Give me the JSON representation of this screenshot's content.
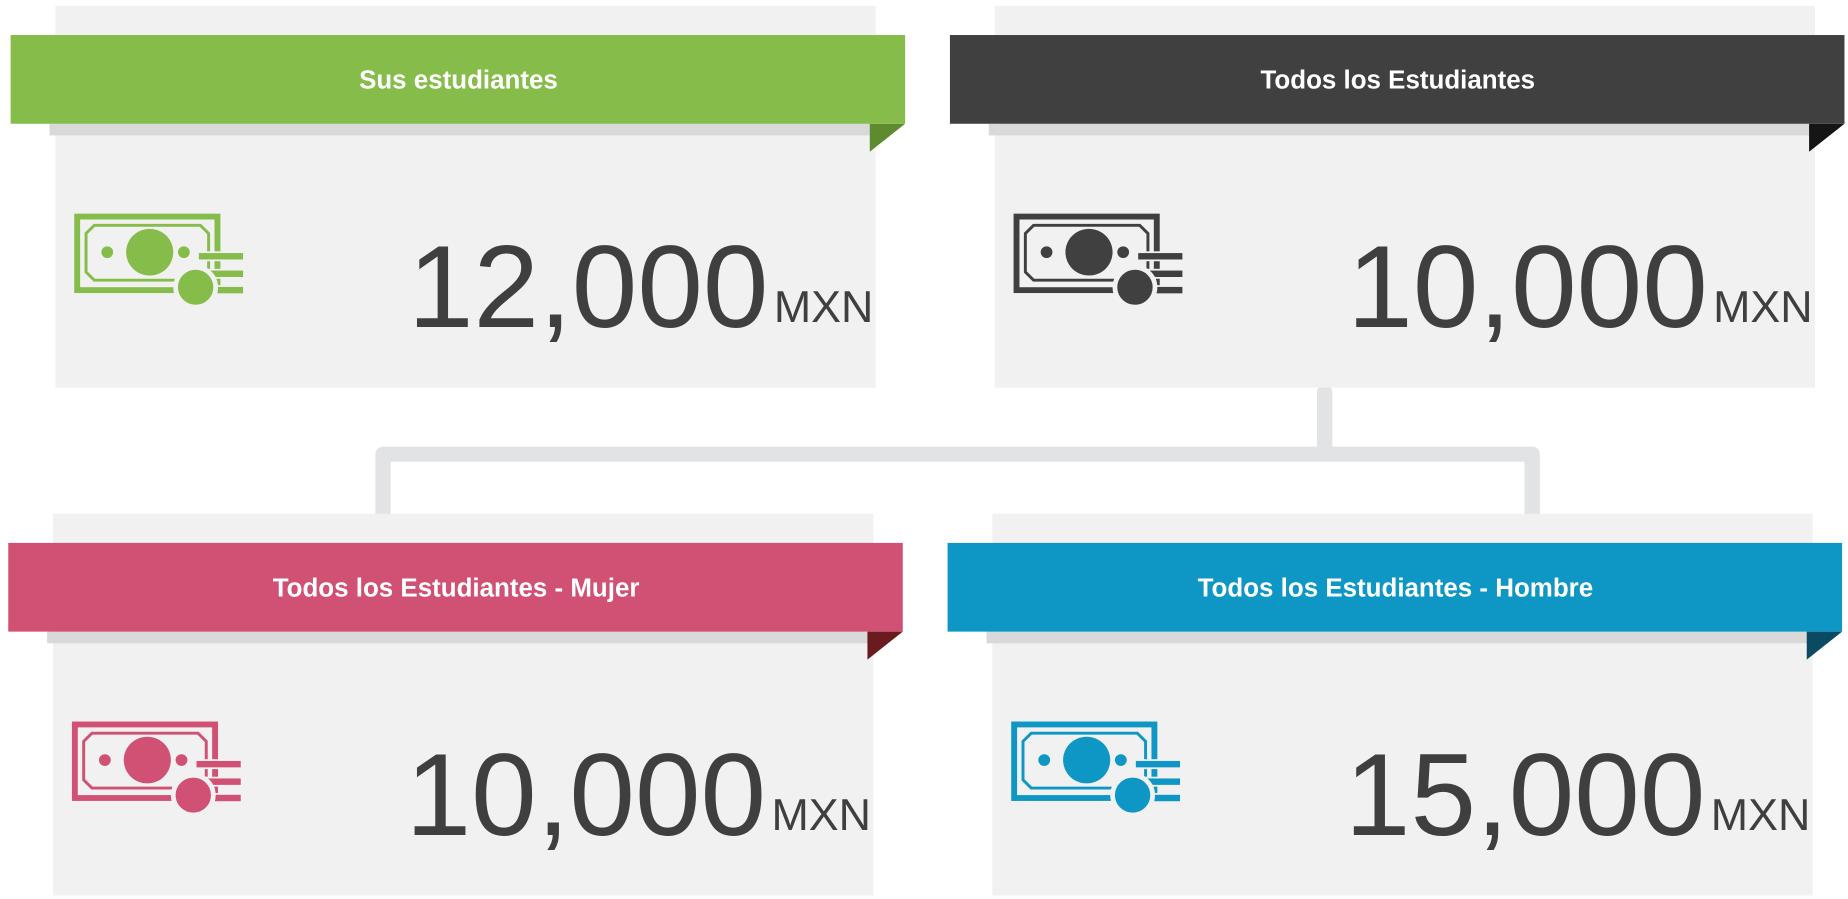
{
  "cards": [
    {
      "title": "Sus estudiantes",
      "amount": "12,000",
      "currency": "MXN",
      "color": "#86bc4a",
      "fold_color": "#5e8b30"
    },
    {
      "title": "Todos los Estudiantes",
      "amount": "10,000",
      "currency": "MXN",
      "color": "#404040",
      "fold_color": "#151515"
    },
    {
      "title": "Todos los Estudiantes  - Mujer",
      "amount": "10,000",
      "currency": "MXN",
      "color": "#d05173",
      "fold_color": "#6b1a1f"
    },
    {
      "title": "Todos los Estudiantes  - Hombre",
      "amount": "15,000",
      "currency": "MXN",
      "color": "#0e97c4",
      "fold_color": "#0a4a62"
    }
  ]
}
